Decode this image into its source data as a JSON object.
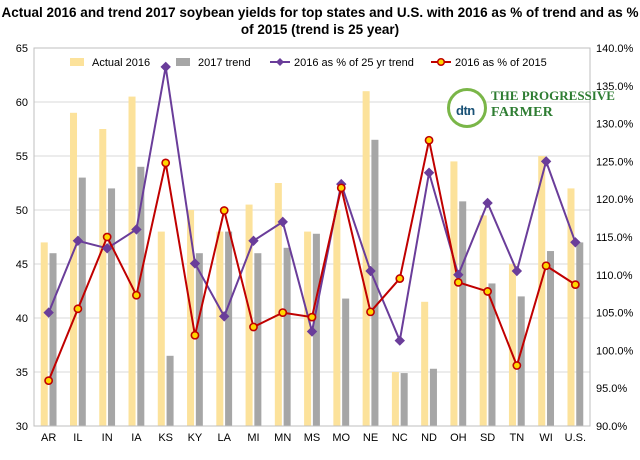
{
  "chart_data": {
    "type": "bar",
    "title": "Actual 2016 and trend 2017 soybean yields for top states and U.S. with 2016 as % of trend and as % of 2015 (trend is 25 year)",
    "categories": [
      "AR",
      "IL",
      "IN",
      "IA",
      "KS",
      "KY",
      "LA",
      "MI",
      "MN",
      "MS",
      "MO",
      "NE",
      "NC",
      "ND",
      "OH",
      "SD",
      "TN",
      "WI",
      "U.S."
    ],
    "left_axis": {
      "min": 30,
      "max": 65,
      "ticks": [
        "30",
        "35",
        "40",
        "45",
        "50",
        "55",
        "60",
        "65"
      ]
    },
    "right_axis": {
      "min": 90,
      "max": 140,
      "ticks": [
        "90.0%",
        "95.0%",
        "100.0%",
        "105.0%",
        "110.0%",
        "115.0%",
        "120.0%",
        "125.0%",
        "130.0%",
        "135.0%",
        "140.0%"
      ]
    },
    "grid": true,
    "legend_position": "top",
    "series": [
      {
        "name": "Actual 2016",
        "kind": "bar",
        "axis": "left",
        "color": "#fce29b",
        "values": [
          47,
          59,
          57.5,
          60.5,
          48,
          50,
          48,
          50.5,
          52.5,
          48,
          50,
          61,
          35,
          41.5,
          54.5,
          49.5,
          45,
          55,
          52
        ]
      },
      {
        "name": "2017 trend",
        "kind": "bar",
        "axis": "left",
        "color": "#a6a6a6",
        "values": [
          46,
          53,
          52,
          54,
          36.5,
          46,
          48,
          46,
          46.5,
          47.8,
          41.8,
          56.5,
          34.9,
          35.3,
          50.8,
          43.2,
          42,
          46.2,
          47
        ]
      },
      {
        "name": "2016 as % of 25 yr trend",
        "kind": "line",
        "axis": "right",
        "color": "#6a3d9a",
        "marker": "diamond",
        "values": [
          105.0,
          114.5,
          113.5,
          116.0,
          137.5,
          111.5,
          104.5,
          114.5,
          117.0,
          102.5,
          122.0,
          110.5,
          101.3,
          123.5,
          110.0,
          119.5,
          110.5,
          125.0,
          114.3
        ]
      },
      {
        "name": "2016 as % of 2015",
        "kind": "line",
        "axis": "right",
        "color": "#c00000",
        "marker": "circle",
        "values": [
          96.0,
          105.5,
          115.0,
          107.3,
          124.8,
          102.0,
          118.5,
          103.1,
          105.0,
          104.4,
          121.5,
          105.1,
          109.5,
          127.8,
          109.0,
          107.8,
          98.0,
          111.2,
          108.7
        ]
      }
    ]
  },
  "logo": {
    "mark": "dtn",
    "name_top": "THE PROGRESSIVE",
    "name_bottom": "FARMER"
  }
}
